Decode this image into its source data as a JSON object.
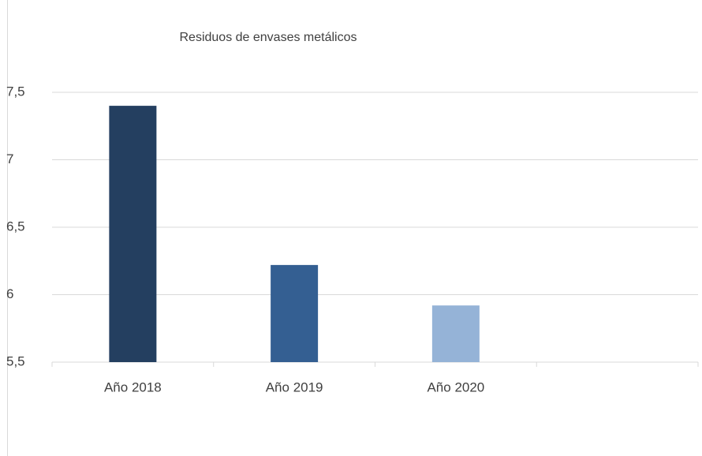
{
  "chart_data": {
    "type": "bar",
    "title": "Residuos de envases metálicos",
    "categories": [
      "Año 2018",
      "Año 2019",
      "Año 2020",
      null
    ],
    "values": [
      7.4,
      6.22,
      5.92,
      null
    ],
    "colors": [
      "#243f60",
      "#345f92",
      "#95b3d7",
      null
    ],
    "ylim": [
      5.5,
      7.5
    ],
    "yticks": [
      {
        "value": 5.5,
        "label": "5,5"
      },
      6,
      {
        "value": 6.5,
        "label": "6,5"
      },
      7,
      {
        "value": 7.5,
        "label": "7,5"
      }
    ],
    "grid": true
  }
}
